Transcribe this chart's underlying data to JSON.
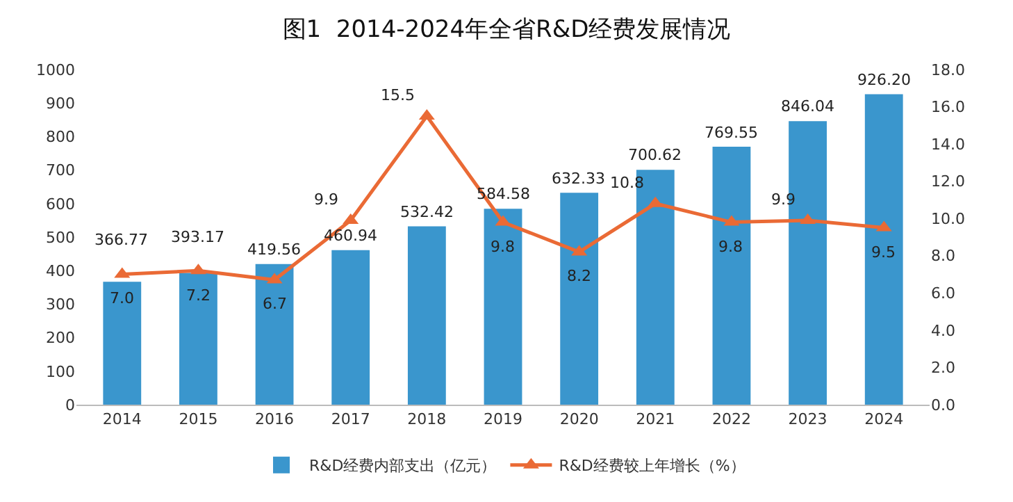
{
  "chart_data": {
    "type": "bar",
    "title": "图1  2014-2024年全省R&D经费发展情况",
    "categories": [
      "2014",
      "2015",
      "2016",
      "2017",
      "2018",
      "2019",
      "2020",
      "2021",
      "2022",
      "2023",
      "2024"
    ],
    "series": [
      {
        "name": "R&D经费内部支出（亿元）",
        "color": "#3a96cd",
        "values": [
          366.77,
          393.17,
          419.56,
          460.94,
          532.42,
          584.58,
          632.33,
          700.62,
          769.55,
          846.04,
          926.2
        ],
        "value_labels": [
          "366.77",
          "393.17",
          "419.56",
          "460.94",
          "532.42",
          "584.58",
          "632.33",
          "700.62",
          "769.55",
          "846.04",
          "926.20"
        ]
      },
      {
        "name": "R&D经费较上年增长（%）",
        "type": "line",
        "axis": "y2",
        "color": "#ea6a35",
        "marker": "triangle",
        "values": [
          7.0,
          7.2,
          6.7,
          9.9,
          15.5,
          9.8,
          8.2,
          10.8,
          9.8,
          9.9,
          9.5
        ],
        "value_labels": [
          "7.0",
          "7.2",
          "6.7",
          "9.9",
          "15.5",
          "9.8",
          "8.2",
          "10.8",
          "9.8",
          "9.9",
          "9.5"
        ]
      }
    ],
    "ylim": [
      0,
      1000
    ],
    "yticks": [
      0,
      100,
      200,
      300,
      400,
      500,
      600,
      700,
      800,
      900,
      1000
    ],
    "y2lim": [
      0,
      18
    ],
    "y2ticks": [
      {
        "value": 0,
        "label": "0.0"
      },
      {
        "value": 2,
        "label": "2.0"
      },
      {
        "value": 4,
        "label": "4.0"
      },
      {
        "value": 6,
        "label": "6.0"
      },
      {
        "value": 8,
        "label": "8.0"
      },
      {
        "value": 10,
        "label": "10.0"
      },
      {
        "value": 12,
        "label": "12.0"
      },
      {
        "value": 14,
        "label": "14.0"
      },
      {
        "value": 16,
        "label": "16.0"
      },
      {
        "value": 18,
        "label": "18.0"
      }
    ],
    "grid": false,
    "legend": "bottom"
  }
}
